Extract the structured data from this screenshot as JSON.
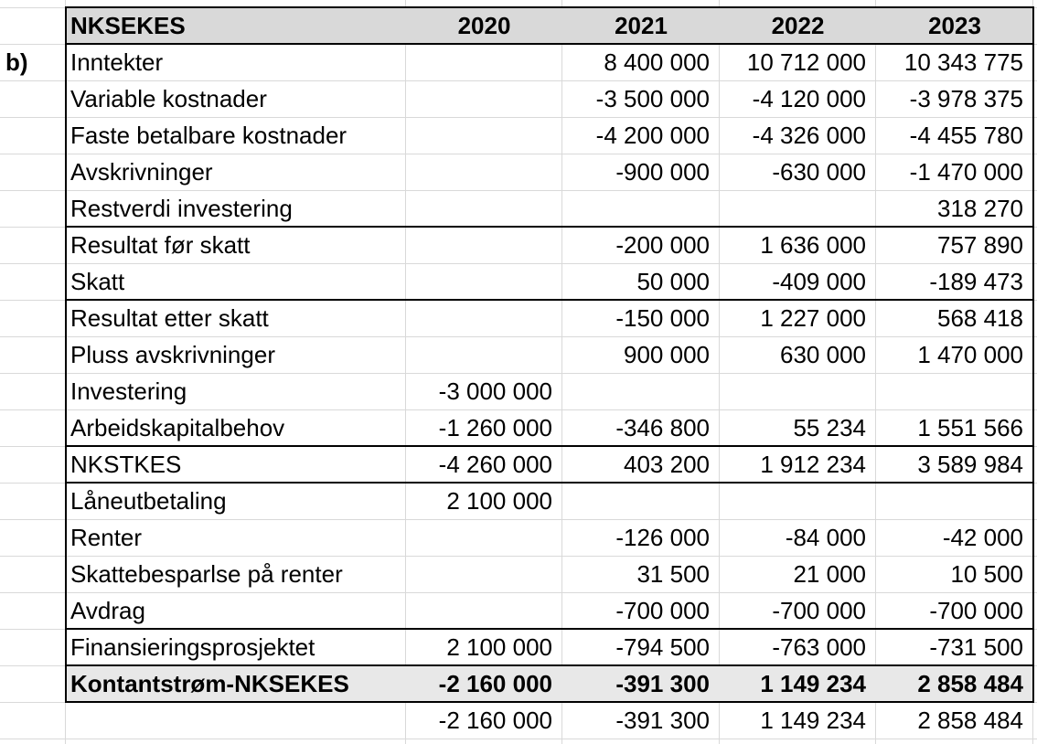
{
  "section_label": "b)",
  "header": {
    "label": "NKSEKES",
    "years": [
      "2020",
      "2021",
      "2022",
      "2023"
    ]
  },
  "rows": [
    {
      "label": "Inntekter",
      "v2020": "",
      "v2021": "8 400 000",
      "v2022": "10 712 000",
      "v2023": "10 343 775"
    },
    {
      "label": "Variable kostnader",
      "v2020": "",
      "v2021": "-3 500 000",
      "v2022": "-4 120 000",
      "v2023": "-3 978 375"
    },
    {
      "label": "Faste betalbare kostnader",
      "v2020": "",
      "v2021": "-4 200 000",
      "v2022": "-4 326 000",
      "v2023": "-4 455 780"
    },
    {
      "label": "Avskrivninger",
      "v2020": "",
      "v2021": "-900 000",
      "v2022": "-630 000",
      "v2023": "-1 470 000"
    },
    {
      "label": "Restverdi investering",
      "v2020": "",
      "v2021": "",
      "v2022": "",
      "v2023": "318 270"
    },
    {
      "label": "Resultat før skatt",
      "v2020": "",
      "v2021": "-200 000",
      "v2022": "1 636 000",
      "v2023": "757 890"
    },
    {
      "label": "Skatt",
      "v2020": "",
      "v2021": "50 000",
      "v2022": "-409 000",
      "v2023": "-189 473"
    },
    {
      "label": "Resultat etter skatt",
      "v2020": "",
      "v2021": "-150 000",
      "v2022": "1 227 000",
      "v2023": "568 418"
    },
    {
      "label": "Pluss avskrivninger",
      "v2020": "",
      "v2021": "900 000",
      "v2022": "630 000",
      "v2023": "1 470 000"
    },
    {
      "label": "Investering",
      "v2020": "-3 000 000",
      "v2021": "",
      "v2022": "",
      "v2023": ""
    },
    {
      "label": "Arbeidskapitalbehov",
      "v2020": "-1 260 000",
      "v2021": "-346 800",
      "v2022": "55 234",
      "v2023": "1 551 566"
    },
    {
      "label": "NKSTKES",
      "v2020": "-4 260 000",
      "v2021": "403 200",
      "v2022": "1 912 234",
      "v2023": "3 589 984"
    },
    {
      "label": "Låneutbetaling",
      "v2020": "2 100 000",
      "v2021": "",
      "v2022": "",
      "v2023": ""
    },
    {
      "label": "Renter",
      "v2020": "",
      "v2021": "-126 000",
      "v2022": "-84 000",
      "v2023": "-42 000"
    },
    {
      "label": "Skattebesparlse på renter",
      "v2020": "",
      "v2021": "31 500",
      "v2022": "21 000",
      "v2023": "10 500"
    },
    {
      "label": "Avdrag",
      "v2020": "",
      "v2021": "-700 000",
      "v2022": "-700 000",
      "v2023": "-700 000"
    },
    {
      "label": "Finansieringsprosjektet",
      "v2020": "2 100 000",
      "v2021": "-794 500",
      "v2022": "-763 000",
      "v2023": "-731 500"
    }
  ],
  "total": {
    "label": "Kontantstrøm-NKSEKES",
    "v2020": "-2 160 000",
    "v2021": "-391 300",
    "v2022": "1 149 234",
    "v2023": "2 858 484"
  },
  "check_row": {
    "label": "",
    "v2020": "-2 160 000",
    "v2021": "-391 300",
    "v2022": "1 149 234",
    "v2023": "2 858 484"
  }
}
